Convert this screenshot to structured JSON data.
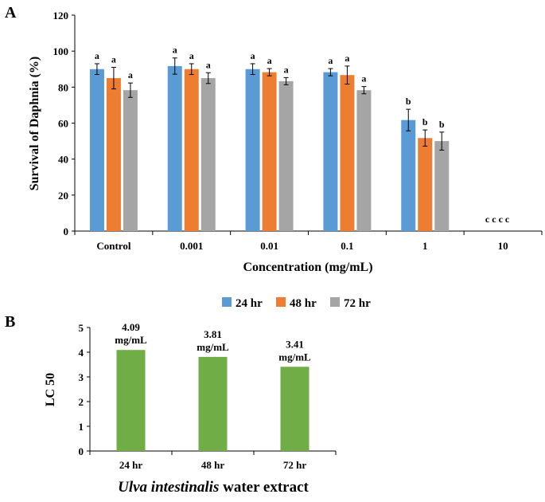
{
  "colors": {
    "h24": "#5b9bd5",
    "h48": "#ed7d31",
    "h72": "#a5a5a5",
    "lc50": "#70ad47",
    "axis": "#000000"
  },
  "chart_data": [
    {
      "panel": "A",
      "type": "bar",
      "xlabel": "Concentration (mg/mL)",
      "ylabel": "Survival of Daphnia (%)",
      "ylim": [
        0,
        120
      ],
      "yticks": [
        "0",
        "20",
        "40",
        "60",
        "80",
        "100",
        "120"
      ],
      "categories": [
        "Control",
        "0.001",
        "0.01",
        "0.1",
        "1",
        "10"
      ],
      "legend": [
        "24 hr",
        "48 hr",
        "72 hr"
      ],
      "legend_position": "bottom",
      "series": [
        {
          "name": "24 hr",
          "values": [
            90,
            91.7,
            90,
            88.3,
            61.7,
            0
          ],
          "errors": [
            3,
            4.5,
            3,
            2,
            6,
            0
          ],
          "labels": [
            "a",
            "a",
            "a",
            "a",
            "b",
            "c"
          ]
        },
        {
          "name": "48 hr",
          "values": [
            85,
            90,
            88.3,
            86.7,
            51.7,
            0
          ],
          "errors": [
            6,
            3,
            2,
            5,
            4.5,
            0
          ],
          "labels": [
            "a",
            "a",
            "a",
            "a",
            "b",
            "c"
          ]
        },
        {
          "name": "72 hr",
          "values": [
            78.3,
            85,
            83.3,
            78.3,
            50,
            0
          ],
          "errors": [
            4,
            3,
            2,
            2,
            5,
            0
          ],
          "labels": [
            "a",
            "a",
            "a",
            "a",
            "b",
            "c"
          ]
        }
      ],
      "annotation": "c c c c"
    },
    {
      "panel": "B",
      "type": "bar",
      "title": "",
      "ylabel": "LC 50",
      "xlabel_italic": "Ulva intestinalis",
      "xlabel_rest": " water extract",
      "ylim": [
        0,
        5
      ],
      "yticks": [
        "0",
        "1",
        "2",
        "3",
        "4",
        "5"
      ],
      "categories": [
        "24 hr",
        "48 hr",
        "72 hr"
      ],
      "values": [
        4.09,
        3.81,
        3.41
      ],
      "value_labels": [
        "4.09",
        "3.81",
        "3.41"
      ],
      "unit": "mg/mL"
    }
  ]
}
